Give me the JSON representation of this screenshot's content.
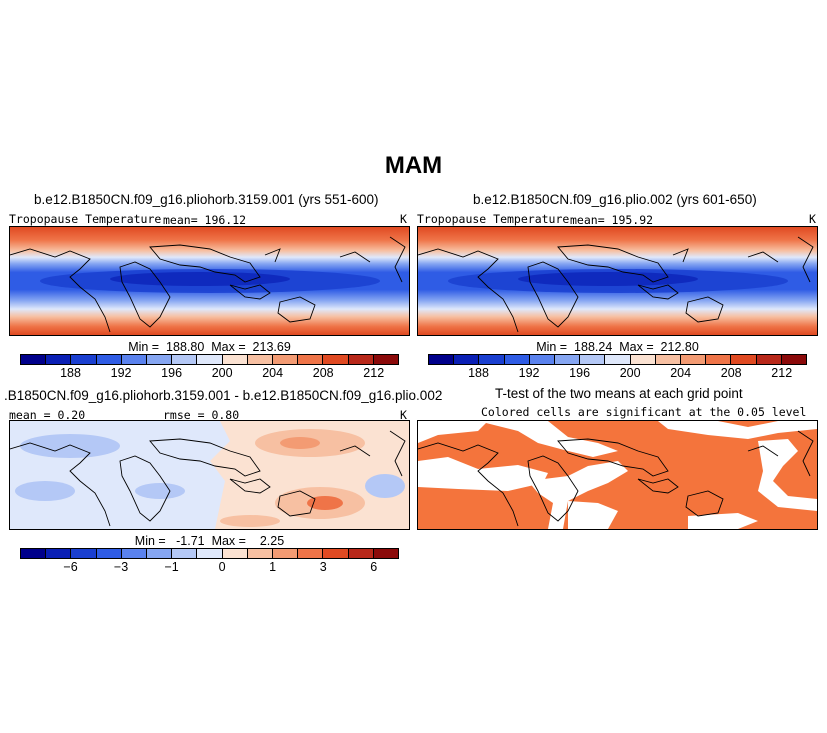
{
  "title": "MAM",
  "panels": {
    "p1": {
      "title": "b.e12.B1850CN.f09_g16.pliohorb.3159.001 (yrs 551-600)",
      "variable": "Tropopause Temperature",
      "stat": "mean=  196.12",
      "units": "K",
      "minmax": "Min =  188.80  Max =  213.69"
    },
    "p2": {
      "title": "b.e12.B1850CN.f09_g16.plio.002 (yrs 601-650)",
      "variable": "Tropopause Temperature",
      "stat": "mean=  195.92",
      "units": "K",
      "minmax": "Min =  188.24  Max =  212.80"
    },
    "p3": {
      "title": ".B1850CN.f09_g16.pliohorb.3159.001 - b.e12.B1850CN.f09_g16.plio.002",
      "mean": "mean =    0.20",
      "rmse": "rmse =    0.80",
      "units": "K",
      "minmax": "Min =   -1.71  Max =    2.25"
    },
    "p4": {
      "title": "T-test of the two means at each grid point",
      "subtitle": "Colored cells are significant at the 0.05 level"
    }
  },
  "colorbars": {
    "absolute": {
      "colors": [
        "#00008b",
        "#0a1fb5",
        "#1a3fd0",
        "#2f5ce5",
        "#5a82ee",
        "#86a6f2",
        "#b4c8f6",
        "#dfe8fb",
        "#fbe2d2",
        "#f7c0a2",
        "#f39b73",
        "#ef7448",
        "#e04a22",
        "#b8281a",
        "#8b0a0a"
      ],
      "tick_labels": [
        "188",
        "192",
        "196",
        "200",
        "204",
        "208",
        "212"
      ]
    },
    "difference": {
      "colors": [
        "#00008b",
        "#0a1fb5",
        "#1a3fd0",
        "#2f5ce5",
        "#5a82ee",
        "#86a6f2",
        "#b4c8f6",
        "#dfe8fb",
        "#fbe2d2",
        "#f7c0a2",
        "#f39b73",
        "#ef7448",
        "#e04a22",
        "#b8281a",
        "#8b0a0a"
      ],
      "tick_labels": [
        "−6",
        "−3",
        "−1",
        "0",
        "1",
        "3",
        "6"
      ]
    }
  },
  "colors": {
    "ttest_significant": "#f4743c"
  }
}
